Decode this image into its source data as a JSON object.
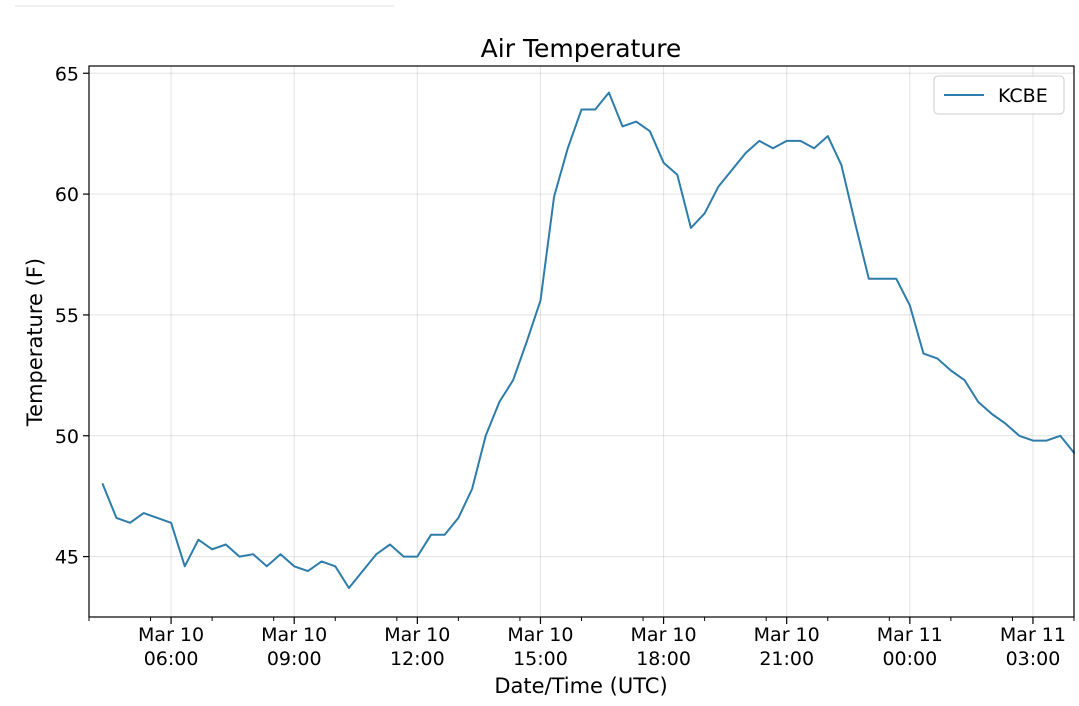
{
  "chart_data": {
    "type": "line",
    "title": "Air Temperature",
    "xlabel": "Date/Time (UTC)",
    "ylabel": "Temperature (F)",
    "x_unit": "hours",
    "xlim": [
      "2019-03-10 04:00",
      "2019-03-11 04:00"
    ],
    "ylim": [
      42.5,
      65.3
    ],
    "yticks": [
      45,
      50,
      55,
      60,
      65
    ],
    "xticks": [
      {
        "at": "2019-03-10 06:00",
        "line1": "Mar 10",
        "line2": "06:00"
      },
      {
        "at": "2019-03-10 09:00",
        "line1": "Mar 10",
        "line2": "09:00"
      },
      {
        "at": "2019-03-10 12:00",
        "line1": "Mar 10",
        "line2": "12:00"
      },
      {
        "at": "2019-03-10 15:00",
        "line1": "Mar 10",
        "line2": "15:00"
      },
      {
        "at": "2019-03-10 18:00",
        "line1": "Mar 10",
        "line2": "18:00"
      },
      {
        "at": "2019-03-10 21:00",
        "line1": "Mar 10",
        "line2": "21:00"
      },
      {
        "at": "2019-03-11 00:00",
        "line1": "Mar 11",
        "line2": "00:00"
      },
      {
        "at": "2019-03-11 03:00",
        "line1": "Mar 11",
        "line2": "03:00"
      }
    ],
    "grid": true,
    "legend": {
      "placement": "top-right"
    },
    "series": [
      {
        "name": "KCBE",
        "color": "#2e7ca9",
        "x": [
          "2019-03-10 04:20",
          "2019-03-10 04:40",
          "2019-03-10 05:00",
          "2019-03-10 05:20",
          "2019-03-10 05:40",
          "2019-03-10 06:00",
          "2019-03-10 06:20",
          "2019-03-10 06:40",
          "2019-03-10 07:00",
          "2019-03-10 07:20",
          "2019-03-10 07:40",
          "2019-03-10 08:00",
          "2019-03-10 08:20",
          "2019-03-10 08:40",
          "2019-03-10 09:00",
          "2019-03-10 09:20",
          "2019-03-10 09:40",
          "2019-03-10 10:00",
          "2019-03-10 10:20",
          "2019-03-10 10:40",
          "2019-03-10 11:00",
          "2019-03-10 11:20",
          "2019-03-10 11:40",
          "2019-03-10 12:00",
          "2019-03-10 12:20",
          "2019-03-10 12:40",
          "2019-03-10 13:00",
          "2019-03-10 13:20",
          "2019-03-10 13:40",
          "2019-03-10 14:00",
          "2019-03-10 14:20",
          "2019-03-10 14:40",
          "2019-03-10 15:00",
          "2019-03-10 15:20",
          "2019-03-10 15:40",
          "2019-03-10 16:00",
          "2019-03-10 16:20",
          "2019-03-10 16:40",
          "2019-03-10 17:00",
          "2019-03-10 17:20",
          "2019-03-10 17:40",
          "2019-03-10 18:00",
          "2019-03-10 18:20",
          "2019-03-10 18:40",
          "2019-03-10 19:00",
          "2019-03-10 19:20",
          "2019-03-10 19:40",
          "2019-03-10 20:00",
          "2019-03-10 20:20",
          "2019-03-10 20:40",
          "2019-03-10 21:00",
          "2019-03-10 21:20",
          "2019-03-10 21:40",
          "2019-03-10 22:00",
          "2019-03-10 22:20",
          "2019-03-10 22:40",
          "2019-03-10 23:00",
          "2019-03-10 23:20",
          "2019-03-10 23:40",
          "2019-03-11 00:00",
          "2019-03-11 00:20",
          "2019-03-11 00:40",
          "2019-03-11 01:00",
          "2019-03-11 01:20",
          "2019-03-11 01:40",
          "2019-03-11 02:00",
          "2019-03-11 02:20",
          "2019-03-11 02:40",
          "2019-03-11 03:00",
          "2019-03-11 03:20",
          "2019-03-11 03:40",
          "2019-03-11 04:00"
        ],
        "y": [
          48.0,
          46.6,
          46.4,
          46.8,
          46.6,
          46.4,
          44.6,
          45.7,
          45.3,
          45.5,
          45.0,
          45.1,
          44.6,
          45.1,
          44.6,
          44.4,
          44.8,
          44.6,
          43.7,
          44.4,
          45.1,
          45.5,
          45.0,
          45.0,
          45.9,
          45.9,
          46.6,
          47.8,
          50.0,
          51.4,
          52.3,
          53.9,
          55.6,
          59.9,
          61.9,
          63.5,
          63.5,
          64.2,
          62.8,
          63.0,
          62.6,
          61.3,
          60.8,
          58.6,
          59.2,
          60.3,
          61.0,
          61.7,
          62.2,
          61.9,
          62.2,
          62.2,
          61.9,
          62.4,
          61.2,
          58.8,
          56.5,
          56.5,
          56.5,
          55.4,
          53.4,
          53.2,
          52.7,
          52.3,
          51.4,
          50.9,
          50.5,
          50.0,
          49.8,
          49.8,
          50.0,
          49.3
        ]
      }
    ]
  }
}
